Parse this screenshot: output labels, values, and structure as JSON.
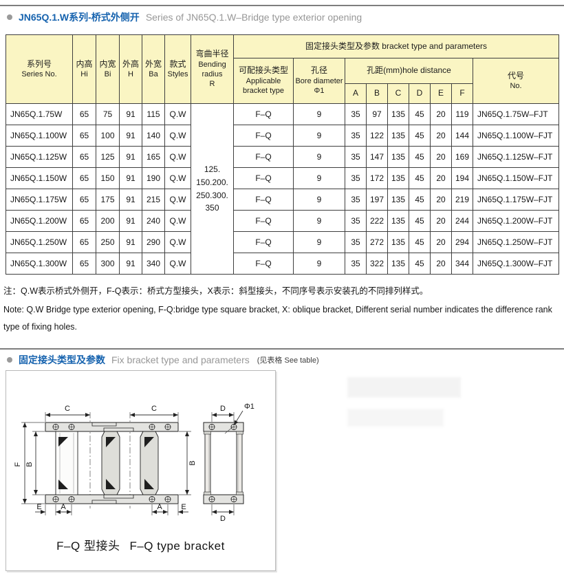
{
  "colors": {
    "accent_blue": "#1562AE",
    "header_yellow": "#FAF5C3",
    "table_border": "#3E3E3E",
    "title_gray": "#979797",
    "text": "#161616"
  },
  "section1": {
    "title_zh": "JN65Q.1.W系列-桥式外侧开",
    "title_en": "Series of JN65Q.1.W–Bridge type exterior opening"
  },
  "table": {
    "head": {
      "series": [
        "系列号",
        "Series No."
      ],
      "hi": [
        "内高",
        "Hi"
      ],
      "bi": [
        "内宽",
        "Bi"
      ],
      "h": [
        "外高",
        "H"
      ],
      "ba": [
        "外宽",
        "Ba"
      ],
      "styles": [
        "款式",
        "Styles"
      ],
      "bending": [
        "弯曲半径",
        "Bending",
        "radius",
        "R"
      ],
      "group": "固定接头类型及参数 bracket type and parameters",
      "applicable": [
        "可配接头类型",
        "Applicable",
        "bracket type"
      ],
      "bore": [
        "孔径",
        "Bore diameter",
        "Φ1"
      ],
      "hole_distance": "孔距(mm)hole distance",
      "letters": [
        "A",
        "B",
        "C",
        "D",
        "E",
        "F"
      ],
      "no": [
        "代号",
        "No."
      ]
    },
    "bending_radius": [
      "125.",
      "150.200.",
      "250.300.",
      "350"
    ],
    "rows": [
      [
        "JN65Q.1.75W",
        "65",
        "75",
        "91",
        "115",
        "Q.W",
        "F–Q",
        "9",
        "35",
        "97",
        "135",
        "45",
        "20",
        "119",
        "JN65Q.1.75W–FJT"
      ],
      [
        "JN65Q.1.100W",
        "65",
        "100",
        "91",
        "140",
        "Q.W",
        "F–Q",
        "9",
        "35",
        "122",
        "135",
        "45",
        "20",
        "144",
        "JN65Q.1.100W–FJT"
      ],
      [
        "JN65Q.1.125W",
        "65",
        "125",
        "91",
        "165",
        "Q.W",
        "F–Q",
        "9",
        "35",
        "147",
        "135",
        "45",
        "20",
        "169",
        "JN65Q.1.125W–FJT"
      ],
      [
        "JN65Q.1.150W",
        "65",
        "150",
        "91",
        "190",
        "Q.W",
        "F–Q",
        "9",
        "35",
        "172",
        "135",
        "45",
        "20",
        "194",
        "JN65Q.1.150W–FJT"
      ],
      [
        "JN65Q.1.175W",
        "65",
        "175",
        "91",
        "215",
        "Q.W",
        "F–Q",
        "9",
        "35",
        "197",
        "135",
        "45",
        "20",
        "219",
        "JN65Q.1.175W–FJT"
      ],
      [
        "JN65Q.1.200W",
        "65",
        "200",
        "91",
        "240",
        "Q.W",
        "F–Q",
        "9",
        "35",
        "222",
        "135",
        "45",
        "20",
        "244",
        "JN65Q.1.200W–FJT"
      ],
      [
        "JN65Q.1.250W",
        "65",
        "250",
        "91",
        "290",
        "Q.W",
        "F–Q",
        "9",
        "35",
        "272",
        "135",
        "45",
        "20",
        "294",
        "JN65Q.1.250W–FJT"
      ],
      [
        "JN65Q.1.300W",
        "65",
        "300",
        "91",
        "340",
        "Q.W",
        "F–Q",
        "9",
        "35",
        "322",
        "135",
        "45",
        "20",
        "344",
        "JN65Q.1.300W–FJT"
      ]
    ]
  },
  "notes": {
    "zh": "注：Q.W表示桥式外侧开，F-Q表示：桥式方型接头，X表示：斜型接头，不同序号表示安装孔的不同排列样式。",
    "en": "Note: Q.W Bridge type exterior opening, F-Q:bridge type square bracket, X: oblique bracket, Different serial number indicates the difference rank type of fixing holes."
  },
  "section2": {
    "title_zh": "固定接头类型及参数",
    "title_en": "Fix bracket type and parameters",
    "see_table": "(见表格 See table)"
  },
  "diagram": {
    "caption_zh": "F–Q 型接头",
    "caption_en": "F–Q type bracket",
    "labels": {
      "c": "C",
      "d": "D",
      "phi": "Φ1",
      "f": "F",
      "b": "B",
      "a": "A",
      "e": "E"
    }
  }
}
